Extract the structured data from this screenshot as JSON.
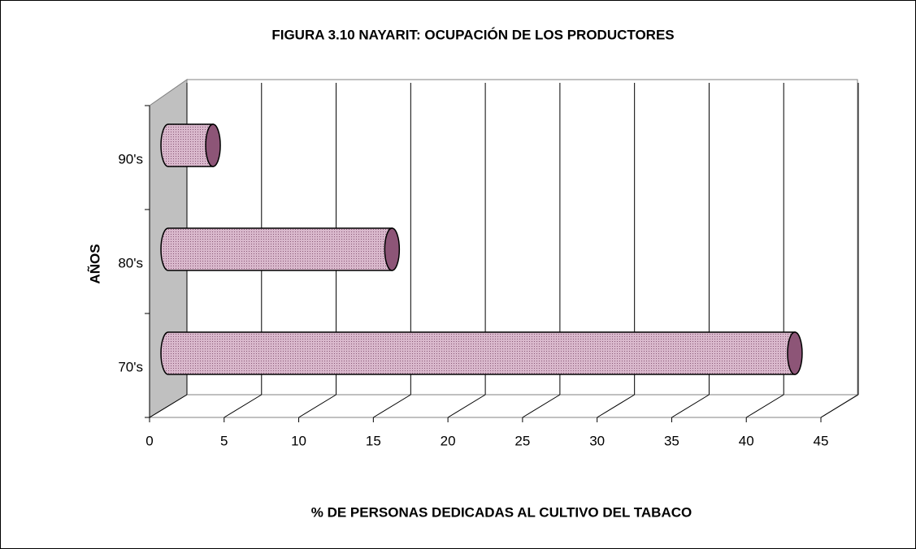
{
  "chart_data": {
    "type": "bar",
    "orientation": "horizontal",
    "title": "FIGURA 3.10 NAYARIT: OCUPACIÓN DE LOS PRODUCTORES",
    "x_label": "% DE PERSONAS DEDICADAS AL CULTIVO DEL TABACO",
    "y_label": "AÑOS",
    "categories": [
      "70's",
      "80's",
      "90's"
    ],
    "values": [
      42,
      15,
      3
    ],
    "color": "#c9a3bb",
    "xlim": [
      0,
      45
    ],
    "xticks": [
      0,
      5,
      10,
      15,
      20,
      25,
      30,
      35,
      40,
      45
    ],
    "grid": true
  }
}
